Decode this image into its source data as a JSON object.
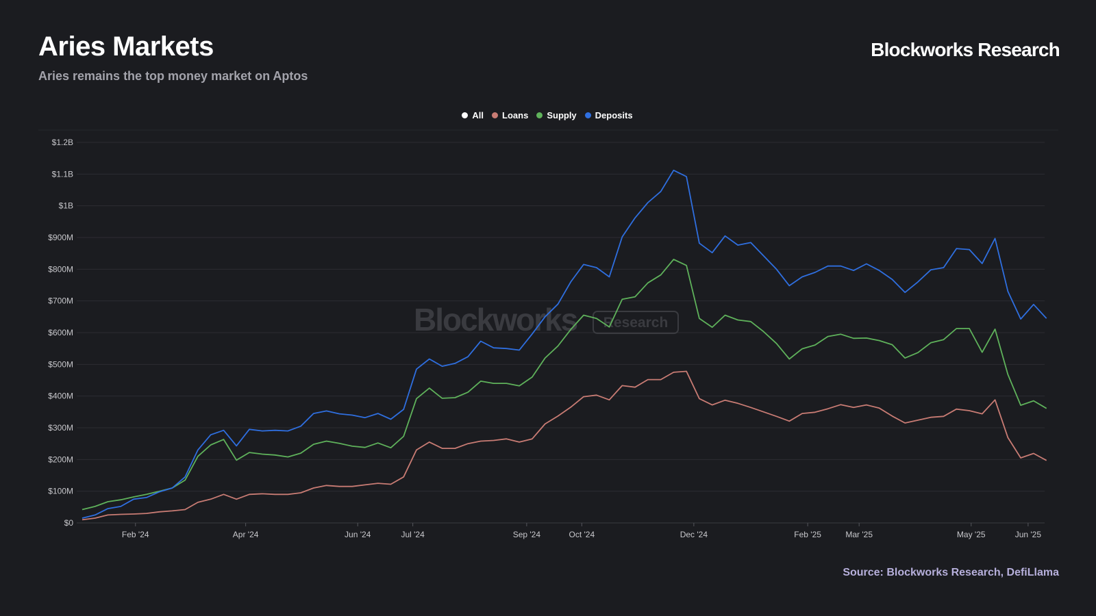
{
  "header": {
    "title": "Aries Markets",
    "subtitle": "Aries remains the top money market on Aptos",
    "brand": "Blockworks Research"
  },
  "footer": {
    "source": "Source: Blockworks Research, DefiLlama"
  },
  "watermark": {
    "main": "Blockworks",
    "sub": "Research"
  },
  "legend": [
    {
      "name": "All",
      "color": "#ffffff"
    },
    {
      "name": "Loans",
      "color": "#c97c74"
    },
    {
      "name": "Supply",
      "color": "#5fb25b"
    },
    {
      "name": "Deposits",
      "color": "#2f6fe0"
    }
  ],
  "chart_data": {
    "type": "line",
    "title": "Aries Markets",
    "xlabel": "",
    "ylabel": "",
    "ylim": [
      0,
      1200000000
    ],
    "yticks": [
      {
        "value": 0,
        "label": "$0"
      },
      {
        "value": 100000000,
        "label": "$100M"
      },
      {
        "value": 200000000,
        "label": "$200M"
      },
      {
        "value": 300000000,
        "label": "$300M"
      },
      {
        "value": 400000000,
        "label": "$400M"
      },
      {
        "value": 500000000,
        "label": "$500M"
      },
      {
        "value": 600000000,
        "label": "$600M"
      },
      {
        "value": 700000000,
        "label": "$700M"
      },
      {
        "value": 800000000,
        "label": "$800M"
      },
      {
        "value": 900000000,
        "label": "$900M"
      },
      {
        "value": 1000000000,
        "label": "$1B"
      },
      {
        "value": 1100000000,
        "label": "$1.1B"
      },
      {
        "value": 1200000000,
        "label": "$1.2B"
      }
    ],
    "xticks": [
      {
        "date": "2024-02-01",
        "label": "Feb '24"
      },
      {
        "date": "2024-04-01",
        "label": "Apr '24"
      },
      {
        "date": "2024-06-01",
        "label": "Jun '24"
      },
      {
        "date": "2024-07-01",
        "label": "Jul '24"
      },
      {
        "date": "2024-09-01",
        "label": "Sep '24"
      },
      {
        "date": "2024-10-01",
        "label": "Oct '24"
      },
      {
        "date": "2024-12-01",
        "label": "Dec '24"
      },
      {
        "date": "2025-02-01",
        "label": "Feb '25"
      },
      {
        "date": "2025-03-01",
        "label": "Mar '25"
      },
      {
        "date": "2025-05-01",
        "label": "May '25"
      },
      {
        "date": "2025-06-01",
        "label": "Jun '25"
      }
    ],
    "grid": true,
    "legend_position": "top-center",
    "x": [
      "2024-01-03",
      "2024-01-10",
      "2024-01-17",
      "2024-01-24",
      "2024-01-31",
      "2024-02-07",
      "2024-02-14",
      "2024-02-21",
      "2024-02-28",
      "2024-03-06",
      "2024-03-13",
      "2024-03-20",
      "2024-03-27",
      "2024-04-03",
      "2024-04-10",
      "2024-04-17",
      "2024-04-24",
      "2024-05-01",
      "2024-05-08",
      "2024-05-15",
      "2024-05-22",
      "2024-05-29",
      "2024-06-05",
      "2024-06-12",
      "2024-06-19",
      "2024-06-26",
      "2024-07-03",
      "2024-07-10",
      "2024-07-17",
      "2024-07-24",
      "2024-07-31",
      "2024-08-07",
      "2024-08-14",
      "2024-08-21",
      "2024-08-28",
      "2024-09-04",
      "2024-09-11",
      "2024-09-18",
      "2024-09-25",
      "2024-10-02",
      "2024-10-09",
      "2024-10-16",
      "2024-10-23",
      "2024-10-30",
      "2024-11-06",
      "2024-11-13",
      "2024-11-20",
      "2024-11-27",
      "2024-12-04",
      "2024-12-11",
      "2024-12-18",
      "2024-12-25",
      "2025-01-01",
      "2025-01-08",
      "2025-01-15",
      "2025-01-22",
      "2025-01-29",
      "2025-02-05",
      "2025-02-12",
      "2025-02-19",
      "2025-02-26",
      "2025-03-05",
      "2025-03-12",
      "2025-03-19",
      "2025-03-26",
      "2025-04-02",
      "2025-04-09",
      "2025-04-16",
      "2025-04-23",
      "2025-04-30",
      "2025-05-07",
      "2025-05-14",
      "2025-05-21",
      "2025-05-28",
      "2025-06-04",
      "2025-06-11",
      "2025-06-18"
    ],
    "series": [
      {
        "name": "Loans",
        "color": "#c97c74",
        "values": [
          10,
          15,
          25,
          27,
          28,
          30,
          35,
          38,
          42,
          65,
          75,
          90,
          75,
          90,
          92,
          90,
          90,
          95,
          110,
          118,
          115,
          115,
          120,
          125,
          122,
          145,
          230,
          255,
          235,
          235,
          250,
          258,
          260,
          265,
          255,
          265,
          312,
          337,
          365,
          398,
          403,
          388,
          433,
          428,
          452,
          452,
          475,
          478,
          392,
          372,
          387,
          377,
          364,
          350,
          336,
          321,
          345,
          349,
          360,
          373,
          364,
          372,
          362,
          337,
          315,
          324,
          333,
          336,
          359,
          354,
          344,
          388,
          269,
          205,
          219,
          197,
          null
        ]
      },
      {
        "name": "Supply",
        "color": "#5fb25b",
        "values": [
          42,
          52,
          67,
          73,
          82,
          90,
          100,
          110,
          135,
          210,
          246,
          263,
          198,
          222,
          217,
          214,
          208,
          220,
          248,
          258,
          251,
          242,
          238,
          252,
          237,
          273,
          392,
          425,
          393,
          395,
          412,
          447,
          440,
          440,
          432,
          460,
          520,
          558,
          610,
          655,
          645,
          618,
          705,
          713,
          757,
          782,
          831,
          812,
          645,
          617,
          655,
          640,
          635,
          603,
          566,
          517,
          549,
          561,
          588,
          595,
          582,
          583,
          575,
          562,
          520,
          537,
          568,
          578,
          613,
          613,
          538,
          611,
          468,
          371,
          385,
          361,
          null
        ]
      },
      {
        "name": "Deposits",
        "color": "#2f6fe0",
        "values": [
          15,
          25,
          45,
          52,
          75,
          80,
          98,
          110,
          145,
          230,
          278,
          292,
          243,
          295,
          290,
          292,
          290,
          305,
          345,
          353,
          344,
          340,
          332,
          345,
          327,
          358,
          485,
          517,
          494,
          503,
          524,
          573,
          552,
          550,
          545,
          596,
          650,
          690,
          760,
          815,
          805,
          776,
          902,
          962,
          1010,
          1045,
          1112,
          1092,
          882,
          852,
          905,
          876,
          884,
          842,
          800,
          748,
          776,
          790,
          810,
          810,
          796,
          817,
          796,
          768,
          727,
          760,
          798,
          805,
          865,
          862,
          818,
          897,
          730,
          643,
          689,
          645,
          null
        ]
      }
    ]
  }
}
